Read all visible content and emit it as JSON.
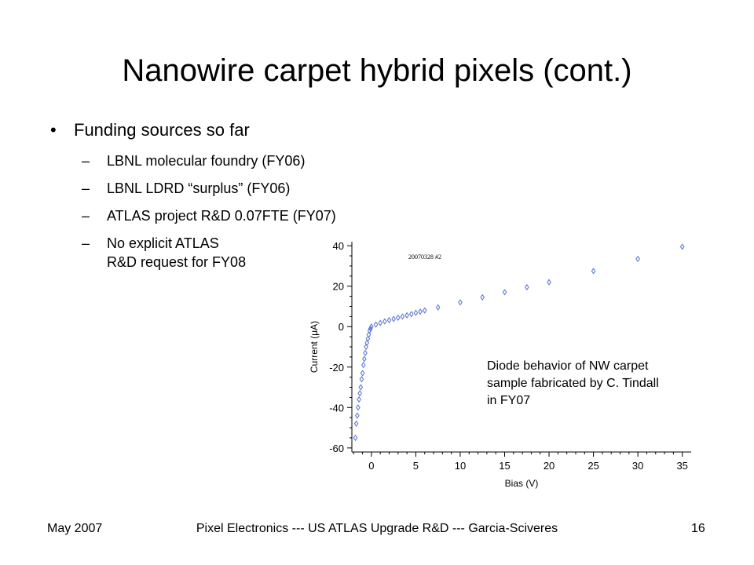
{
  "slide": {
    "title": "Nanowire carpet hybrid pixels (cont.)",
    "bullet_marker": "•",
    "bullet": "Funding sources so far",
    "dash": "–",
    "sub_items": [
      "LBNL molecular foundry (FY06)",
      "LBNL LDRD “surplus” (FY06)",
      "ATLAS project R&D 0.07FTE (FY07)",
      "No explicit ATLAS",
      "R&D request for FY08"
    ],
    "caption_lines": [
      "Diode behavior of NW carpet",
      "sample fabricated by C. Tindall",
      "in FY07"
    ]
  },
  "footer": {
    "left": "May 2007",
    "center": "Pixel Electronics --- US ATLAS Upgrade R&D --- Garcia-Sciveres",
    "right": "16"
  },
  "chart_data": {
    "type": "scatter",
    "inner_label": "20070328 #2",
    "xlabel": "Bias (V)",
    "ylabel": "Current (μA)",
    "xlim": [
      -2.2,
      36
    ],
    "ylim": [
      -62,
      42
    ],
    "x_ticks": [
      0,
      5,
      10,
      15,
      20,
      25,
      30,
      35
    ],
    "y_ticks": [
      40,
      20,
      0,
      -20,
      -40,
      -60
    ],
    "marker": "diamond",
    "marker_color": "#5570d6",
    "x": [
      -1.8,
      -1.7,
      -1.6,
      -1.5,
      -1.4,
      -1.3,
      -1.2,
      -1.1,
      -1.0,
      -0.9,
      -0.8,
      -0.7,
      -0.6,
      -0.5,
      -0.4,
      -0.3,
      -0.2,
      -0.1,
      0.0,
      0.5,
      1.0,
      1.5,
      2.0,
      2.5,
      3.0,
      3.5,
      4.0,
      4.5,
      5.0,
      5.5,
      6.0,
      7.5,
      10.0,
      12.5,
      15.0,
      17.5,
      20.0,
      25.0,
      30.0,
      35.0
    ],
    "y": [
      -55,
      -48,
      -44,
      -40,
      -36,
      -33,
      -30,
      -26,
      -23,
      -19,
      -16,
      -13,
      -10,
      -8,
      -6,
      -4,
      -2,
      -1,
      0,
      1,
      1.8,
      2.6,
      3.2,
      3.8,
      4.4,
      5.0,
      5.6,
      6.2,
      6.8,
      7.4,
      8.0,
      9.5,
      12.0,
      14.5,
      17.0,
      19.5,
      22.0,
      27.5,
      33.5,
      39.5
    ]
  }
}
